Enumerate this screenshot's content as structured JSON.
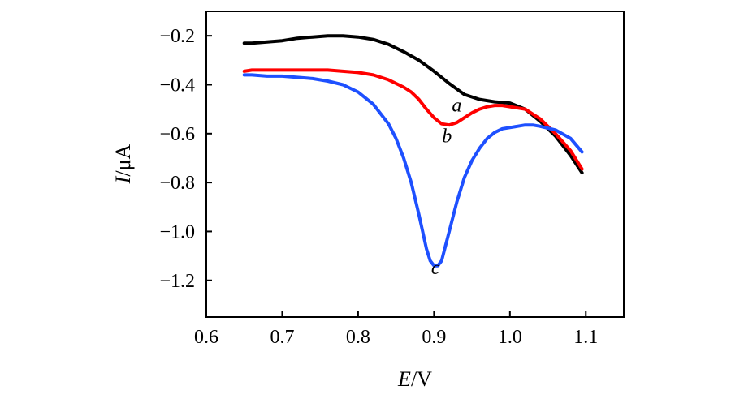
{
  "chart_data": {
    "type": "line",
    "title": "",
    "xlabel_italic": "E",
    "xlabel_unit": "/V",
    "ylabel_italic": "I",
    "ylabel_unit": "/μA",
    "xlim": [
      0.6,
      1.15
    ],
    "ylim": [
      -1.35,
      -0.1
    ],
    "xticks": [
      0.6,
      0.7,
      0.8,
      0.9,
      1.0,
      1.1
    ],
    "xtick_labels": [
      "0.6",
      "0.7",
      "0.8",
      "0.9",
      "1.0",
      "1.1"
    ],
    "yticks": [
      -0.2,
      -0.4,
      -0.6,
      -0.8,
      -1.0,
      -1.2
    ],
    "ytick_labels": [
      "−0.2",
      "−0.4",
      "−0.6",
      "−0.8",
      "−1.0",
      "−1.2"
    ],
    "series": [
      {
        "name": "a",
        "color": "#000000",
        "x": [
          0.65,
          0.66,
          0.68,
          0.7,
          0.72,
          0.74,
          0.76,
          0.78,
          0.8,
          0.82,
          0.84,
          0.86,
          0.88,
          0.9,
          0.92,
          0.94,
          0.96,
          0.98,
          1.0,
          1.02,
          1.04,
          1.06,
          1.08,
          1.095
        ],
        "y": [
          -0.23,
          -0.23,
          -0.225,
          -0.22,
          -0.21,
          -0.205,
          -0.2,
          -0.2,
          -0.205,
          -0.215,
          -0.235,
          -0.265,
          -0.3,
          -0.345,
          -0.395,
          -0.44,
          -0.46,
          -0.47,
          -0.475,
          -0.5,
          -0.55,
          -0.61,
          -0.69,
          -0.76
        ],
        "label_x": 0.93,
        "label_y": -0.51
      },
      {
        "name": "b",
        "color": "#ff0000",
        "x": [
          0.65,
          0.66,
          0.68,
          0.7,
          0.72,
          0.74,
          0.76,
          0.78,
          0.8,
          0.82,
          0.84,
          0.86,
          0.87,
          0.88,
          0.89,
          0.9,
          0.91,
          0.92,
          0.93,
          0.94,
          0.95,
          0.96,
          0.97,
          0.98,
          0.99,
          1.0,
          1.02,
          1.04,
          1.06,
          1.08,
          1.095
        ],
        "y": [
          -0.345,
          -0.34,
          -0.34,
          -0.34,
          -0.34,
          -0.34,
          -0.34,
          -0.345,
          -0.35,
          -0.36,
          -0.38,
          -0.41,
          -0.43,
          -0.46,
          -0.5,
          -0.535,
          -0.56,
          -0.565,
          -0.555,
          -0.535,
          -0.515,
          -0.5,
          -0.49,
          -0.485,
          -0.485,
          -0.49,
          -0.5,
          -0.54,
          -0.6,
          -0.67,
          -0.745
        ],
        "label_x": 0.917,
        "label_y": -0.635
      },
      {
        "name": "c",
        "color": "#1e50ff",
        "x": [
          0.65,
          0.66,
          0.68,
          0.7,
          0.72,
          0.74,
          0.76,
          0.78,
          0.8,
          0.82,
          0.84,
          0.85,
          0.86,
          0.87,
          0.88,
          0.89,
          0.895,
          0.9,
          0.905,
          0.91,
          0.92,
          0.93,
          0.94,
          0.95,
          0.96,
          0.97,
          0.98,
          0.99,
          1.0,
          1.02,
          1.03,
          1.04,
          1.06,
          1.08,
          1.095
        ],
        "y": [
          -0.36,
          -0.36,
          -0.365,
          -0.365,
          -0.37,
          -0.375,
          -0.385,
          -0.4,
          -0.43,
          -0.48,
          -0.56,
          -0.62,
          -0.7,
          -0.8,
          -0.93,
          -1.07,
          -1.12,
          -1.14,
          -1.14,
          -1.12,
          -1.0,
          -0.88,
          -0.78,
          -0.71,
          -0.66,
          -0.62,
          -0.595,
          -0.58,
          -0.575,
          -0.565,
          -0.565,
          -0.57,
          -0.585,
          -0.62,
          -0.675
        ],
        "label_x": 0.902,
        "label_y": -1.175
      }
    ]
  }
}
